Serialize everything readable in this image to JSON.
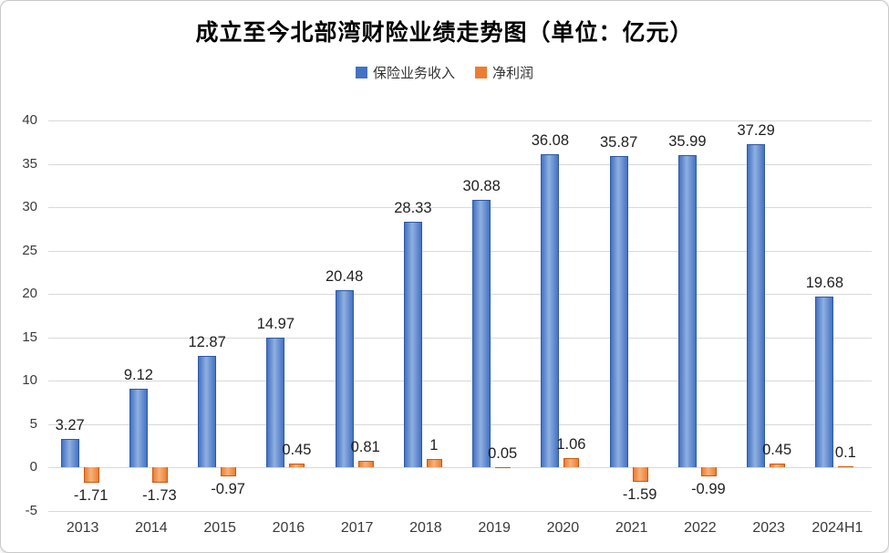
{
  "chart_data": {
    "type": "bar",
    "title": "成立至今北部湾财险业绩走势图（单位：亿元）",
    "categories": [
      "2013",
      "2014",
      "2015",
      "2016",
      "2017",
      "2018",
      "2019",
      "2020",
      "2021",
      "2022",
      "2023",
      "2024H1"
    ],
    "series": [
      {
        "name": "保险业务收入",
        "color": "#4472c4",
        "color_light": "#8fb0e0",
        "color_dark": "#2f5aa0",
        "values": [
          3.27,
          9.12,
          12.87,
          14.97,
          20.48,
          28.33,
          30.88,
          36.08,
          35.87,
          35.99,
          37.29,
          19.68
        ]
      },
      {
        "name": "净利润",
        "color": "#ed7d31",
        "color_light": "#f6b27c",
        "color_dark": "#c55a11",
        "values": [
          -1.71,
          -1.73,
          -0.97,
          0.45,
          0.81,
          1,
          0.05,
          1.06,
          -1.59,
          -0.99,
          0.45,
          0.1
        ]
      }
    ],
    "ylim": [
      -5,
      40
    ],
    "ytick_step": 5,
    "grid": true,
    "legend_position": "top"
  }
}
